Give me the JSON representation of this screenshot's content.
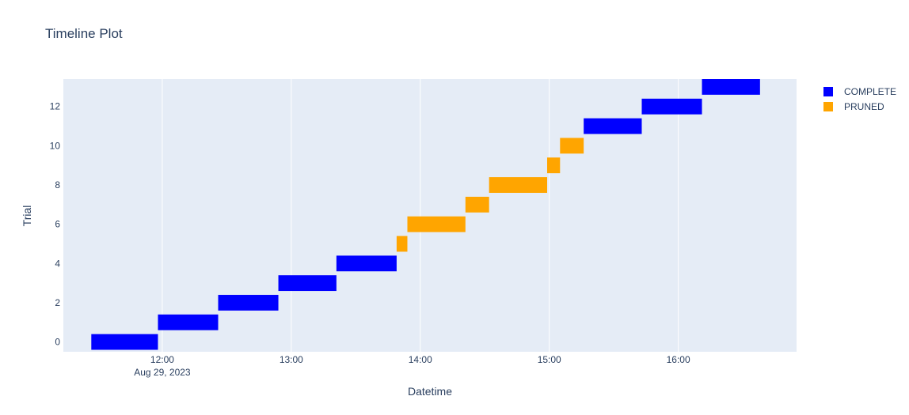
{
  "chart_data": {
    "type": "timeline",
    "title": "Timeline Plot",
    "xlabel": "Datetime",
    "ylabel": "Trial",
    "date_label": "Aug 29, 2023",
    "x_range": [
      "11:14",
      "16:55"
    ],
    "y_range": [
      -0.5,
      13.4
    ],
    "x_ticks": [
      "12:00",
      "13:00",
      "14:00",
      "15:00",
      "16:00"
    ],
    "y_ticks": [
      0,
      2,
      4,
      6,
      8,
      10,
      12
    ],
    "grid": true,
    "background": "#e5ecf6",
    "legend_position": "top-right",
    "series": [
      {
        "name": "COMPLETE",
        "color": "#0000ff"
      },
      {
        "name": "PRUNED",
        "color": "#ffa500"
      }
    ],
    "trials": [
      {
        "trial": 0,
        "state": "COMPLETE",
        "start": "11:27",
        "end": "11:58"
      },
      {
        "trial": 1,
        "state": "COMPLETE",
        "start": "11:58",
        "end": "12:26"
      },
      {
        "trial": 2,
        "state": "COMPLETE",
        "start": "12:26",
        "end": "12:54"
      },
      {
        "trial": 3,
        "state": "COMPLETE",
        "start": "12:54",
        "end": "13:21"
      },
      {
        "trial": 4,
        "state": "COMPLETE",
        "start": "13:21",
        "end": "13:49"
      },
      {
        "trial": 5,
        "state": "PRUNED",
        "start": "13:49",
        "end": "13:54"
      },
      {
        "trial": 6,
        "state": "PRUNED",
        "start": "13:54",
        "end": "14:21"
      },
      {
        "trial": 7,
        "state": "PRUNED",
        "start": "14:21",
        "end": "14:32"
      },
      {
        "trial": 8,
        "state": "PRUNED",
        "start": "14:32",
        "end": "14:59"
      },
      {
        "trial": 9,
        "state": "PRUNED",
        "start": "14:59",
        "end": "15:05"
      },
      {
        "trial": 10,
        "state": "PRUNED",
        "start": "15:05",
        "end": "15:16"
      },
      {
        "trial": 11,
        "state": "COMPLETE",
        "start": "15:16",
        "end": "15:43"
      },
      {
        "trial": 12,
        "state": "COMPLETE",
        "start": "15:43",
        "end": "16:11"
      },
      {
        "trial": 13,
        "state": "COMPLETE",
        "start": "16:11",
        "end": "16:38"
      }
    ]
  }
}
